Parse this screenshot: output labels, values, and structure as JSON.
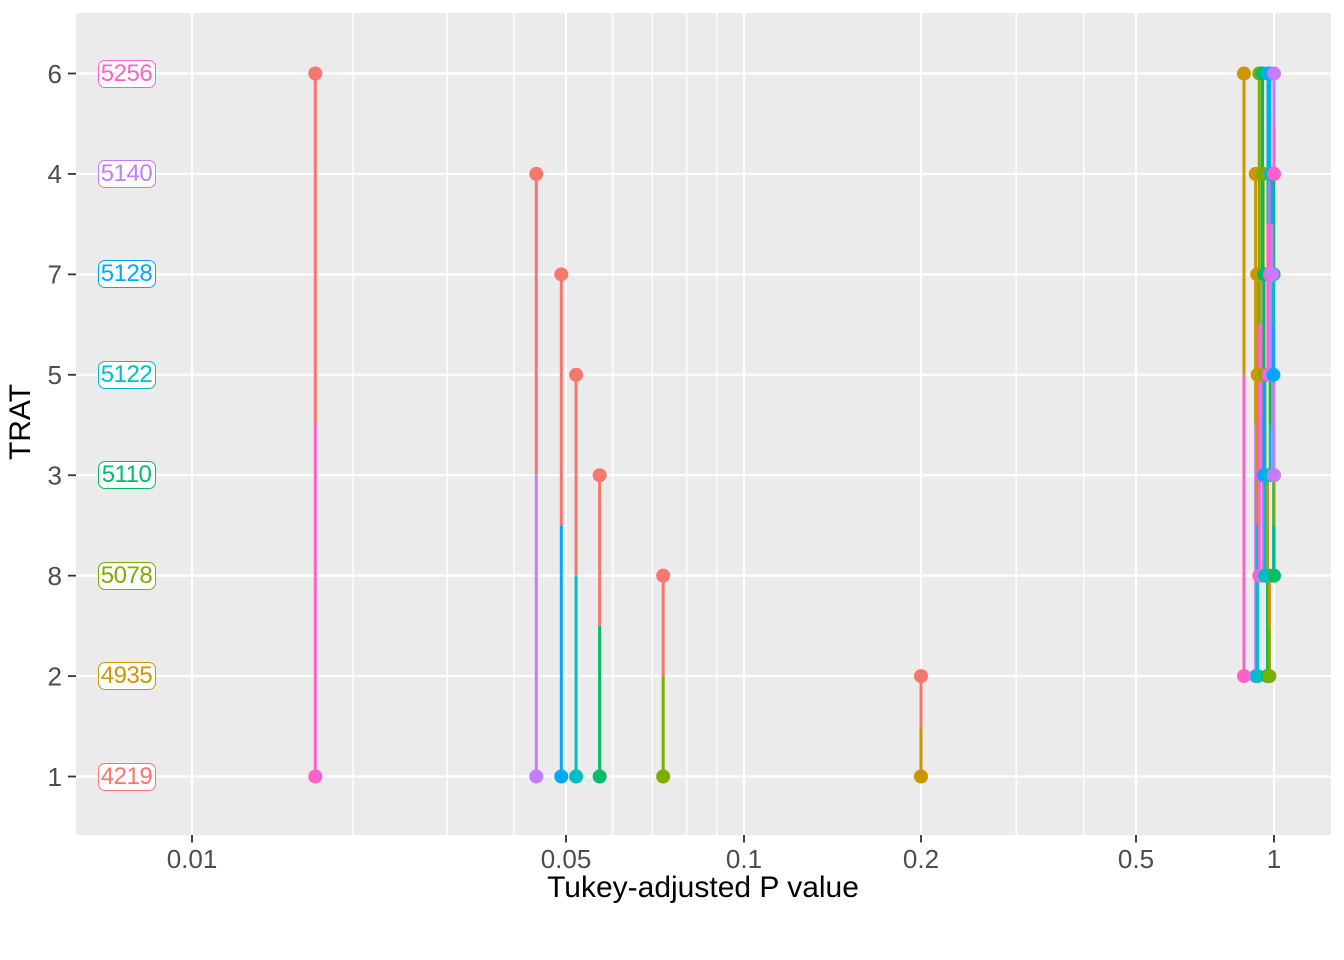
{
  "figure": {
    "x_axis_title": "Tukey-adjusted P value",
    "y_axis_title": "TRAT"
  },
  "theme": {
    "panel_bg": "#EBEBEB",
    "grid": "#FFFFFF",
    "tick_label_color": "#4D4D4D",
    "axis_title_color": "#000000",
    "tick_mark_color": "#333333"
  },
  "chart_data": {
    "type": "scatter",
    "subtype": "pairwise-p-value-plot (emmeans pwpp style, vertical comparison segments)",
    "title": "",
    "xlabel": "Tukey-adjusted P value",
    "ylabel": "TRAT",
    "x_scale": "nonlinear log-like p-value scale",
    "x_range": [
      0.006,
      1.3
    ],
    "grid": "on",
    "legend_position": "none",
    "x_ticks": [
      {
        "p": 0.01,
        "label": "0.01"
      },
      {
        "p": 0.05,
        "label": "0.05"
      },
      {
        "p": 0.1,
        "label": "0.1"
      },
      {
        "p": 0.2,
        "label": "0.2"
      },
      {
        "p": 0.5,
        "label": "0.5"
      },
      {
        "p": 1,
        "label": "1"
      }
    ],
    "x_minor_gridlines": [
      0.02,
      0.03,
      0.04,
      0.06,
      0.07,
      0.08,
      0.09,
      0.3,
      0.4
    ],
    "levels": [
      {
        "trat": "6",
        "estimate": "5256",
        "color": "#FF61CC"
      },
      {
        "trat": "4",
        "estimate": "5140",
        "color": "#C77CFF"
      },
      {
        "trat": "7",
        "estimate": "5128",
        "color": "#00A9FF"
      },
      {
        "trat": "5",
        "estimate": "5122",
        "color": "#00BFC4"
      },
      {
        "trat": "3",
        "estimate": "5110",
        "color": "#00BE67"
      },
      {
        "trat": "8",
        "estimate": "5078",
        "color": "#7CAE00"
      },
      {
        "trat": "2",
        "estimate": "4935",
        "color": "#CD9600"
      },
      {
        "trat": "1",
        "estimate": "4219",
        "color": "#F8766D"
      }
    ],
    "comparisons": [
      {
        "a": "6",
        "b": "1",
        "p": 0.017
      },
      {
        "a": "4",
        "b": "1",
        "p": 0.044
      },
      {
        "a": "7",
        "b": "1",
        "p": 0.049
      },
      {
        "a": "5",
        "b": "1",
        "p": 0.052
      },
      {
        "a": "3",
        "b": "1",
        "p": 0.057
      },
      {
        "a": "8",
        "b": "1",
        "p": 0.073
      },
      {
        "a": "2",
        "b": "1",
        "p": 0.2
      },
      {
        "a": "6",
        "b": "2",
        "p": 0.86
      },
      {
        "a": "4",
        "b": "2",
        "p": 0.912
      },
      {
        "a": "7",
        "b": "2",
        "p": 0.919
      },
      {
        "a": "5",
        "b": "2",
        "p": 0.921
      },
      {
        "a": "3",
        "b": "2",
        "p": 0.968
      },
      {
        "a": "8",
        "b": "2",
        "p": 0.977
      },
      {
        "a": "6",
        "b": "8",
        "p": 0.929
      },
      {
        "a": "4",
        "b": "8",
        "p": 0.947
      },
      {
        "a": "5",
        "b": "8",
        "p": 0.956
      },
      {
        "a": "7",
        "b": "8",
        "p": 0.998
      },
      {
        "a": "3",
        "b": "8",
        "p": 1.0
      },
      {
        "a": "6",
        "b": "3",
        "p": 0.944
      },
      {
        "a": "7",
        "b": "3",
        "p": 0.951
      },
      {
        "a": "5",
        "b": "3",
        "p": 0.981
      },
      {
        "a": "4",
        "b": "3",
        "p": 0.999
      },
      {
        "a": "6",
        "b": "5",
        "p": 0.97
      },
      {
        "a": "4",
        "b": "5",
        "p": 0.985
      },
      {
        "a": "7",
        "b": "5",
        "p": 0.997
      },
      {
        "a": "6",
        "b": "7",
        "p": 0.979
      },
      {
        "a": "4",
        "b": "7",
        "p": 0.99
      },
      {
        "a": "6",
        "b": "4",
        "p": 1.0
      }
    ]
  }
}
